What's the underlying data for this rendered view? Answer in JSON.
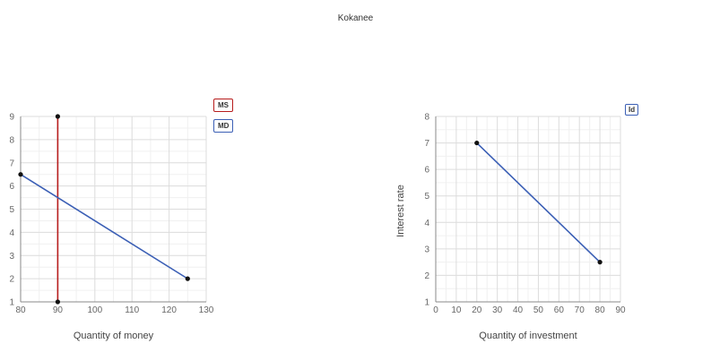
{
  "page": {
    "title": "Kokanee"
  },
  "chart_data": [
    {
      "type": "line",
      "title": "",
      "xlabel": "Quantity of money",
      "ylabel": "",
      "xlim": [
        80,
        130
      ],
      "ylim": [
        1,
        9
      ],
      "xticks": [
        80,
        90,
        100,
        110,
        120,
        130
      ],
      "yticks": [
        1,
        2,
        3,
        4,
        5,
        6,
        7,
        8,
        9
      ],
      "grid": true,
      "legend": "top-right",
      "series": [
        {
          "name": "MS",
          "color": "#b71c1c",
          "points": [
            [
              90,
              9
            ],
            [
              90,
              1
            ]
          ]
        },
        {
          "name": "MD",
          "color": "#3b5fb5",
          "points": [
            [
              80,
              6.5
            ],
            [
              125,
              2
            ]
          ]
        }
      ]
    },
    {
      "type": "line",
      "title": "",
      "xlabel": "Quantity of investment",
      "ylabel": "Interest rate",
      "xlim": [
        0,
        90
      ],
      "ylim": [
        1,
        8
      ],
      "xticks": [
        0,
        10,
        20,
        30,
        40,
        50,
        60,
        70,
        80,
        90
      ],
      "yticks": [
        1,
        2,
        3,
        4,
        5,
        6,
        7,
        8
      ],
      "grid": true,
      "legend": "top-right",
      "series": [
        {
          "name": "Id",
          "color": "#3b5fb5",
          "points": [
            [
              20,
              7
            ],
            [
              80,
              2.5
            ]
          ]
        }
      ]
    }
  ]
}
